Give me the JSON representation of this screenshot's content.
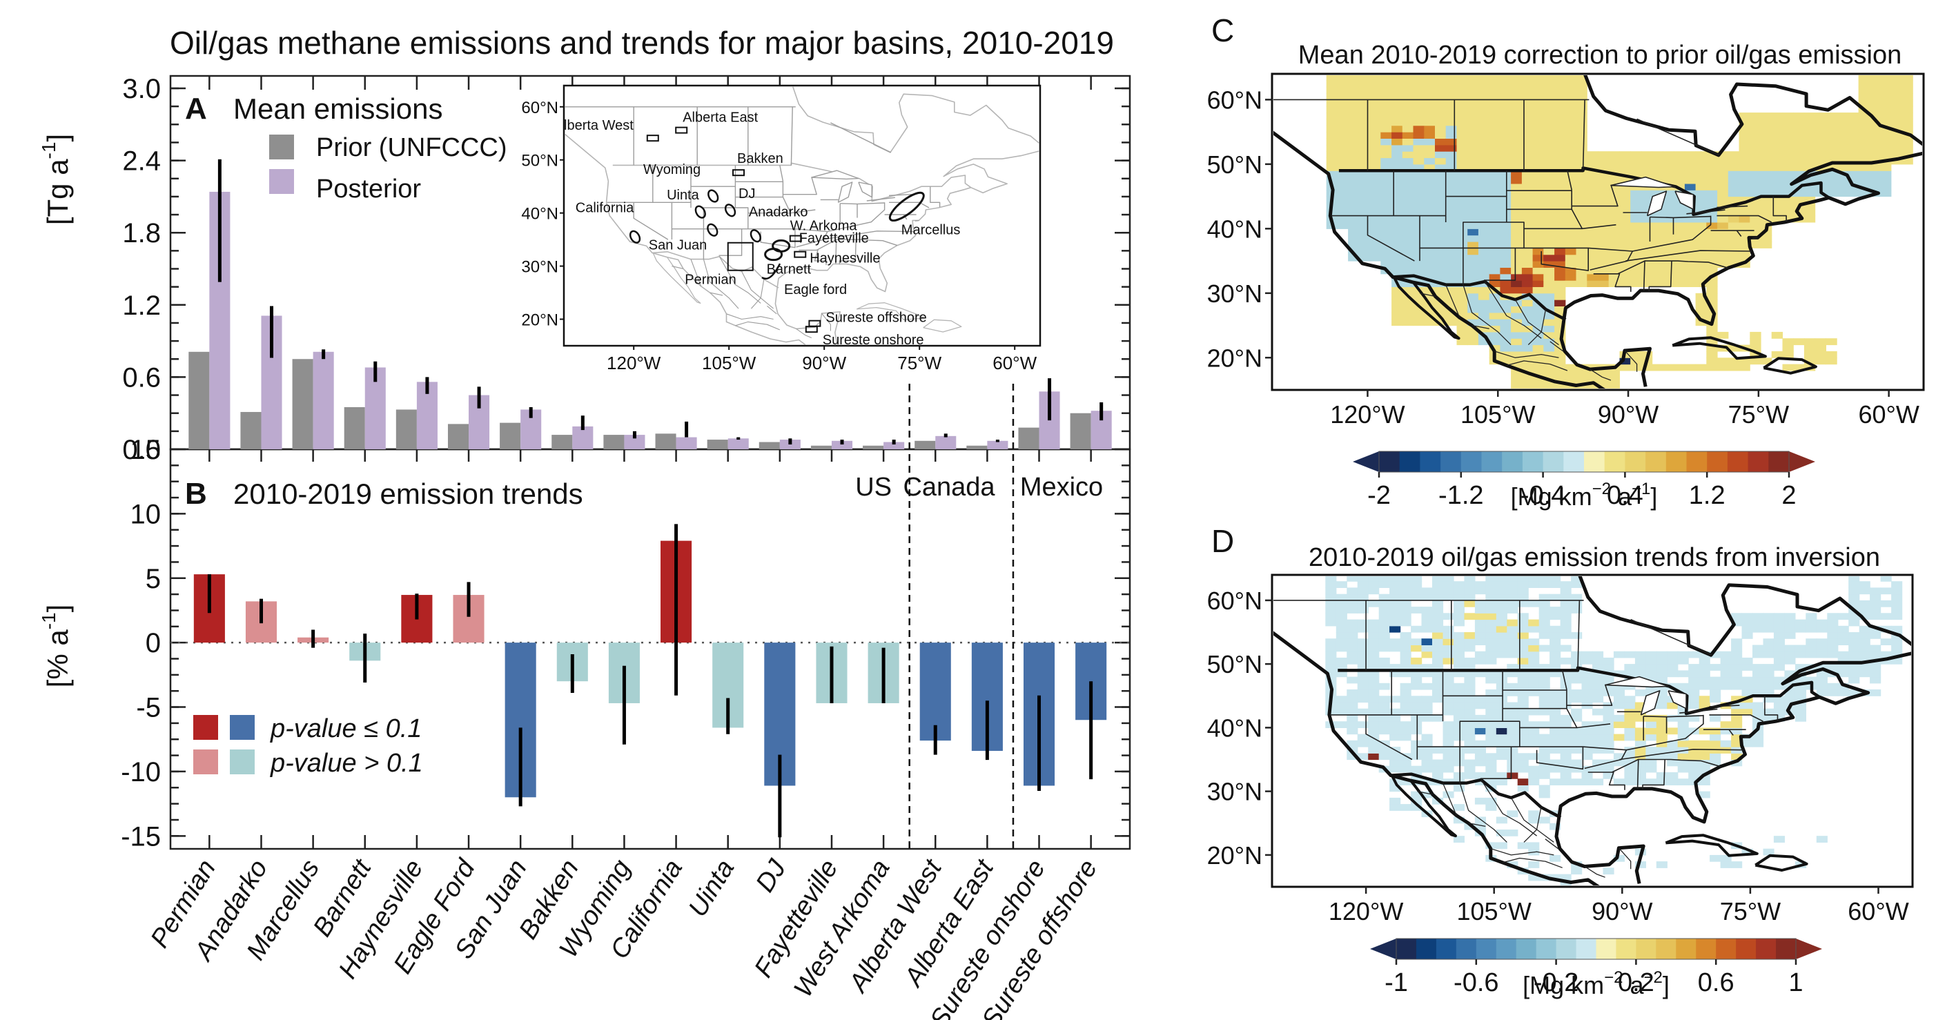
{
  "figure_title": "Oil/gas methane emissions and trends for major basins, 2010-2019",
  "colors": {
    "prior": "#8f8f8f",
    "posterior": "#bcaacf",
    "increase_significant": "#b22323",
    "increase_not_significant": "#da8f91",
    "decrease_significant": "#4770a8",
    "decrease_not_significant": "#a8d0d1",
    "error_bar": "#000000"
  },
  "panel_labels": {
    "a": "A",
    "b": "B",
    "c": "C",
    "d": "D"
  },
  "region_labels": {
    "us": "US",
    "canada": "Canada",
    "mexico": "Mexico"
  },
  "inset_map": {
    "lat_ticks": [
      "60°N",
      "50°N",
      "40°N",
      "30°N",
      "20°N"
    ],
    "lon_ticks": [
      "120°W",
      "105°W",
      "90°W",
      "75°W",
      "60°W"
    ],
    "basin_labels": [
      "Alberta West",
      "Alberta East",
      "Bakken",
      "Wyoming",
      "Uinta",
      "DJ",
      "California",
      "Anadarko",
      "San Juan",
      "W. Arkoma",
      "Marcellus",
      "Fayetteville",
      "Barnett",
      "Haynesville",
      "Permian",
      "Eagle ford",
      "Sureste offshore",
      "Sureste onshore"
    ]
  },
  "chart_data": [
    {
      "type": "bar",
      "panel": "A",
      "title": "Mean emissions",
      "xlabel": "",
      "ylabel": "[Tg a-1]",
      "ylabel_main": "[Tg a",
      "ylabel_sup": "-1",
      "ylabel_close": "]",
      "ylim": [
        0,
        3.0
      ],
      "yticks": [
        "0.0",
        "0.6",
        "1.2",
        "1.8",
        "2.4",
        "3.0"
      ],
      "legend": [
        "Prior (UNFCCC)",
        "Posterior"
      ],
      "legend_position": "top-left",
      "categories": [
        "Permian",
        "Anadarko",
        "Marcellus",
        "Barnett",
        "Haynesville",
        "Eagle Ford",
        "San Juan",
        "Bakken",
        "Wyoming",
        "California",
        "Uinta",
        "DJ",
        "Fayetteville",
        "West Arkoma",
        "Alberta West",
        "Alberta East",
        "Sureste onshore",
        "Sureste offshore"
      ],
      "series": [
        {
          "name": "Prior (UNFCCC)",
          "values": [
            0.81,
            0.31,
            0.75,
            0.35,
            0.33,
            0.21,
            0.22,
            0.12,
            0.12,
            0.13,
            0.08,
            0.06,
            0.03,
            0.03,
            0.07,
            0.03,
            0.18,
            0.3
          ]
        },
        {
          "name": "Posterior",
          "values": [
            2.14,
            1.11,
            0.81,
            0.68,
            0.56,
            0.45,
            0.33,
            0.19,
            0.12,
            0.1,
            0.09,
            0.08,
            0.07,
            0.06,
            0.11,
            0.07,
            0.48,
            0.32
          ],
          "error_low": [
            1.39,
            0.76,
            0.75,
            0.56,
            0.46,
            0.34,
            0.26,
            0.16,
            0.09,
            0.1,
            0.08,
            0.04,
            0.04,
            0.04,
            0.1,
            0.06,
            0.24,
            0.24
          ],
          "error_high": [
            2.41,
            1.19,
            0.83,
            0.73,
            0.6,
            0.52,
            0.35,
            0.28,
            0.15,
            0.23,
            0.1,
            0.09,
            0.08,
            0.08,
            0.13,
            0.08,
            0.59,
            0.39
          ]
        }
      ]
    },
    {
      "type": "bar",
      "panel": "B",
      "title": "2010-2019 emission trends",
      "xlabel": "",
      "ylabel": "[% a-1]",
      "ylabel_main": "[% a",
      "ylabel_sup": "-1",
      "ylabel_close": "]",
      "ylim": [
        -16,
        15
      ],
      "yticks": [
        "-15",
        "-10",
        "-5",
        "0",
        "5",
        "10",
        "15"
      ],
      "legend": [
        "p-value ≤ 0.1",
        "p-value > 0.1"
      ],
      "legend_position": "bottom-left",
      "categories": [
        "Permian",
        "Anadarko",
        "Marcellus",
        "Barnett",
        "Haynesville",
        "Eagle Ford",
        "San Juan",
        "Bakken",
        "Wyoming",
        "California",
        "Uinta",
        "DJ",
        "Fayetteville",
        "West Arkoma",
        "Alberta West",
        "Alberta East",
        "Sureste onshore",
        "Sureste offshore"
      ],
      "values": [
        5.3,
        3.2,
        0.4,
        -1.4,
        3.7,
        3.7,
        -12.0,
        -3.0,
        -4.7,
        7.9,
        -6.6,
        -11.1,
        -4.7,
        -4.7,
        -7.6,
        -8.4,
        -11.1,
        -6.0
      ],
      "error_low": [
        2.3,
        1.5,
        -0.4,
        -3.1,
        1.8,
        2.0,
        -12.7,
        -3.9,
        -7.9,
        -4.1,
        -7.1,
        -15.1,
        -4.7,
        -4.7,
        -8.7,
        -9.1,
        -11.5,
        -10.6
      ],
      "error_high": [
        5.3,
        3.4,
        1.0,
        0.7,
        3.8,
        4.7,
        -6.6,
        -0.9,
        -1.8,
        9.2,
        -4.3,
        -8.7,
        -0.3,
        -0.4,
        -6.4,
        -4.5,
        -4.1,
        -3.0
      ],
      "significant": [
        true,
        false,
        false,
        false,
        true,
        false,
        true,
        false,
        false,
        true,
        false,
        true,
        false,
        false,
        true,
        true,
        true,
        true
      ],
      "country_groups": [
        {
          "label": "US",
          "from": 0,
          "to": 13
        },
        {
          "label": "Canada",
          "from": 14,
          "to": 15
        },
        {
          "label": "Mexico",
          "from": 16,
          "to": 17
        }
      ]
    },
    {
      "type": "heatmap",
      "panel": "C",
      "title": "Mean 2010-2019 correction to prior oil/gas emission",
      "lat_ticks": [
        "60°N",
        "50°N",
        "40°N",
        "30°N",
        "20°N"
      ],
      "lon_ticks": [
        "120°W",
        "105°W",
        "90°W",
        "75°W",
        "60°W"
      ],
      "colorbar": {
        "ticks": [
          "-2",
          "-1.2",
          "-0.4",
          "0.4",
          "1.2",
          "2"
        ],
        "range": [
          -2,
          2
        ],
        "unit_main": "[Mg km",
        "unit_sup1": "−2",
        "unit_mid": " a",
        "unit_sup2": "−1",
        "unit_close": "]",
        "colors": [
          "#1b2b55",
          "#0d3f7a",
          "#1c5897",
          "#3571a9",
          "#4b88b8",
          "#5f9cc2",
          "#76b1ca",
          "#93c6d7",
          "#b0d7e1",
          "#cbe7ef",
          "#f6f1b6",
          "#efe184",
          "#e9d26d",
          "#e5c158",
          "#dea63b",
          "#d8872b",
          "#cc6522",
          "#bd4920",
          "#a63524",
          "#862b22"
        ]
      }
    },
    {
      "type": "heatmap",
      "panel": "D",
      "title": "2010-2019 oil/gas emission trends from inversion",
      "lat_ticks": [
        "60°N",
        "50°N",
        "40°N",
        "30°N",
        "20°N"
      ],
      "lon_ticks": [
        "120°W",
        "105°W",
        "90°W",
        "75°W",
        "60°W"
      ],
      "colorbar": {
        "ticks": [
          "-1",
          "-0.6",
          "-0.2",
          "0.2",
          "0.6",
          "1"
        ],
        "range": [
          -1,
          1
        ],
        "unit_main": "[Mg km",
        "unit_sup1": "−2",
        "unit_mid": " a",
        "unit_sup2": "−2",
        "unit_close": "]",
        "colors": [
          "#1b2b55",
          "#0d3f7a",
          "#1c5897",
          "#3571a9",
          "#4b88b8",
          "#5f9cc2",
          "#76b1ca",
          "#93c6d7",
          "#b0d7e1",
          "#cbe7ef",
          "#f6f1b6",
          "#efe184",
          "#e9d26d",
          "#e5c158",
          "#dea63b",
          "#d8872b",
          "#cc6522",
          "#bd4920",
          "#a63524",
          "#862b22"
        ]
      }
    }
  ]
}
